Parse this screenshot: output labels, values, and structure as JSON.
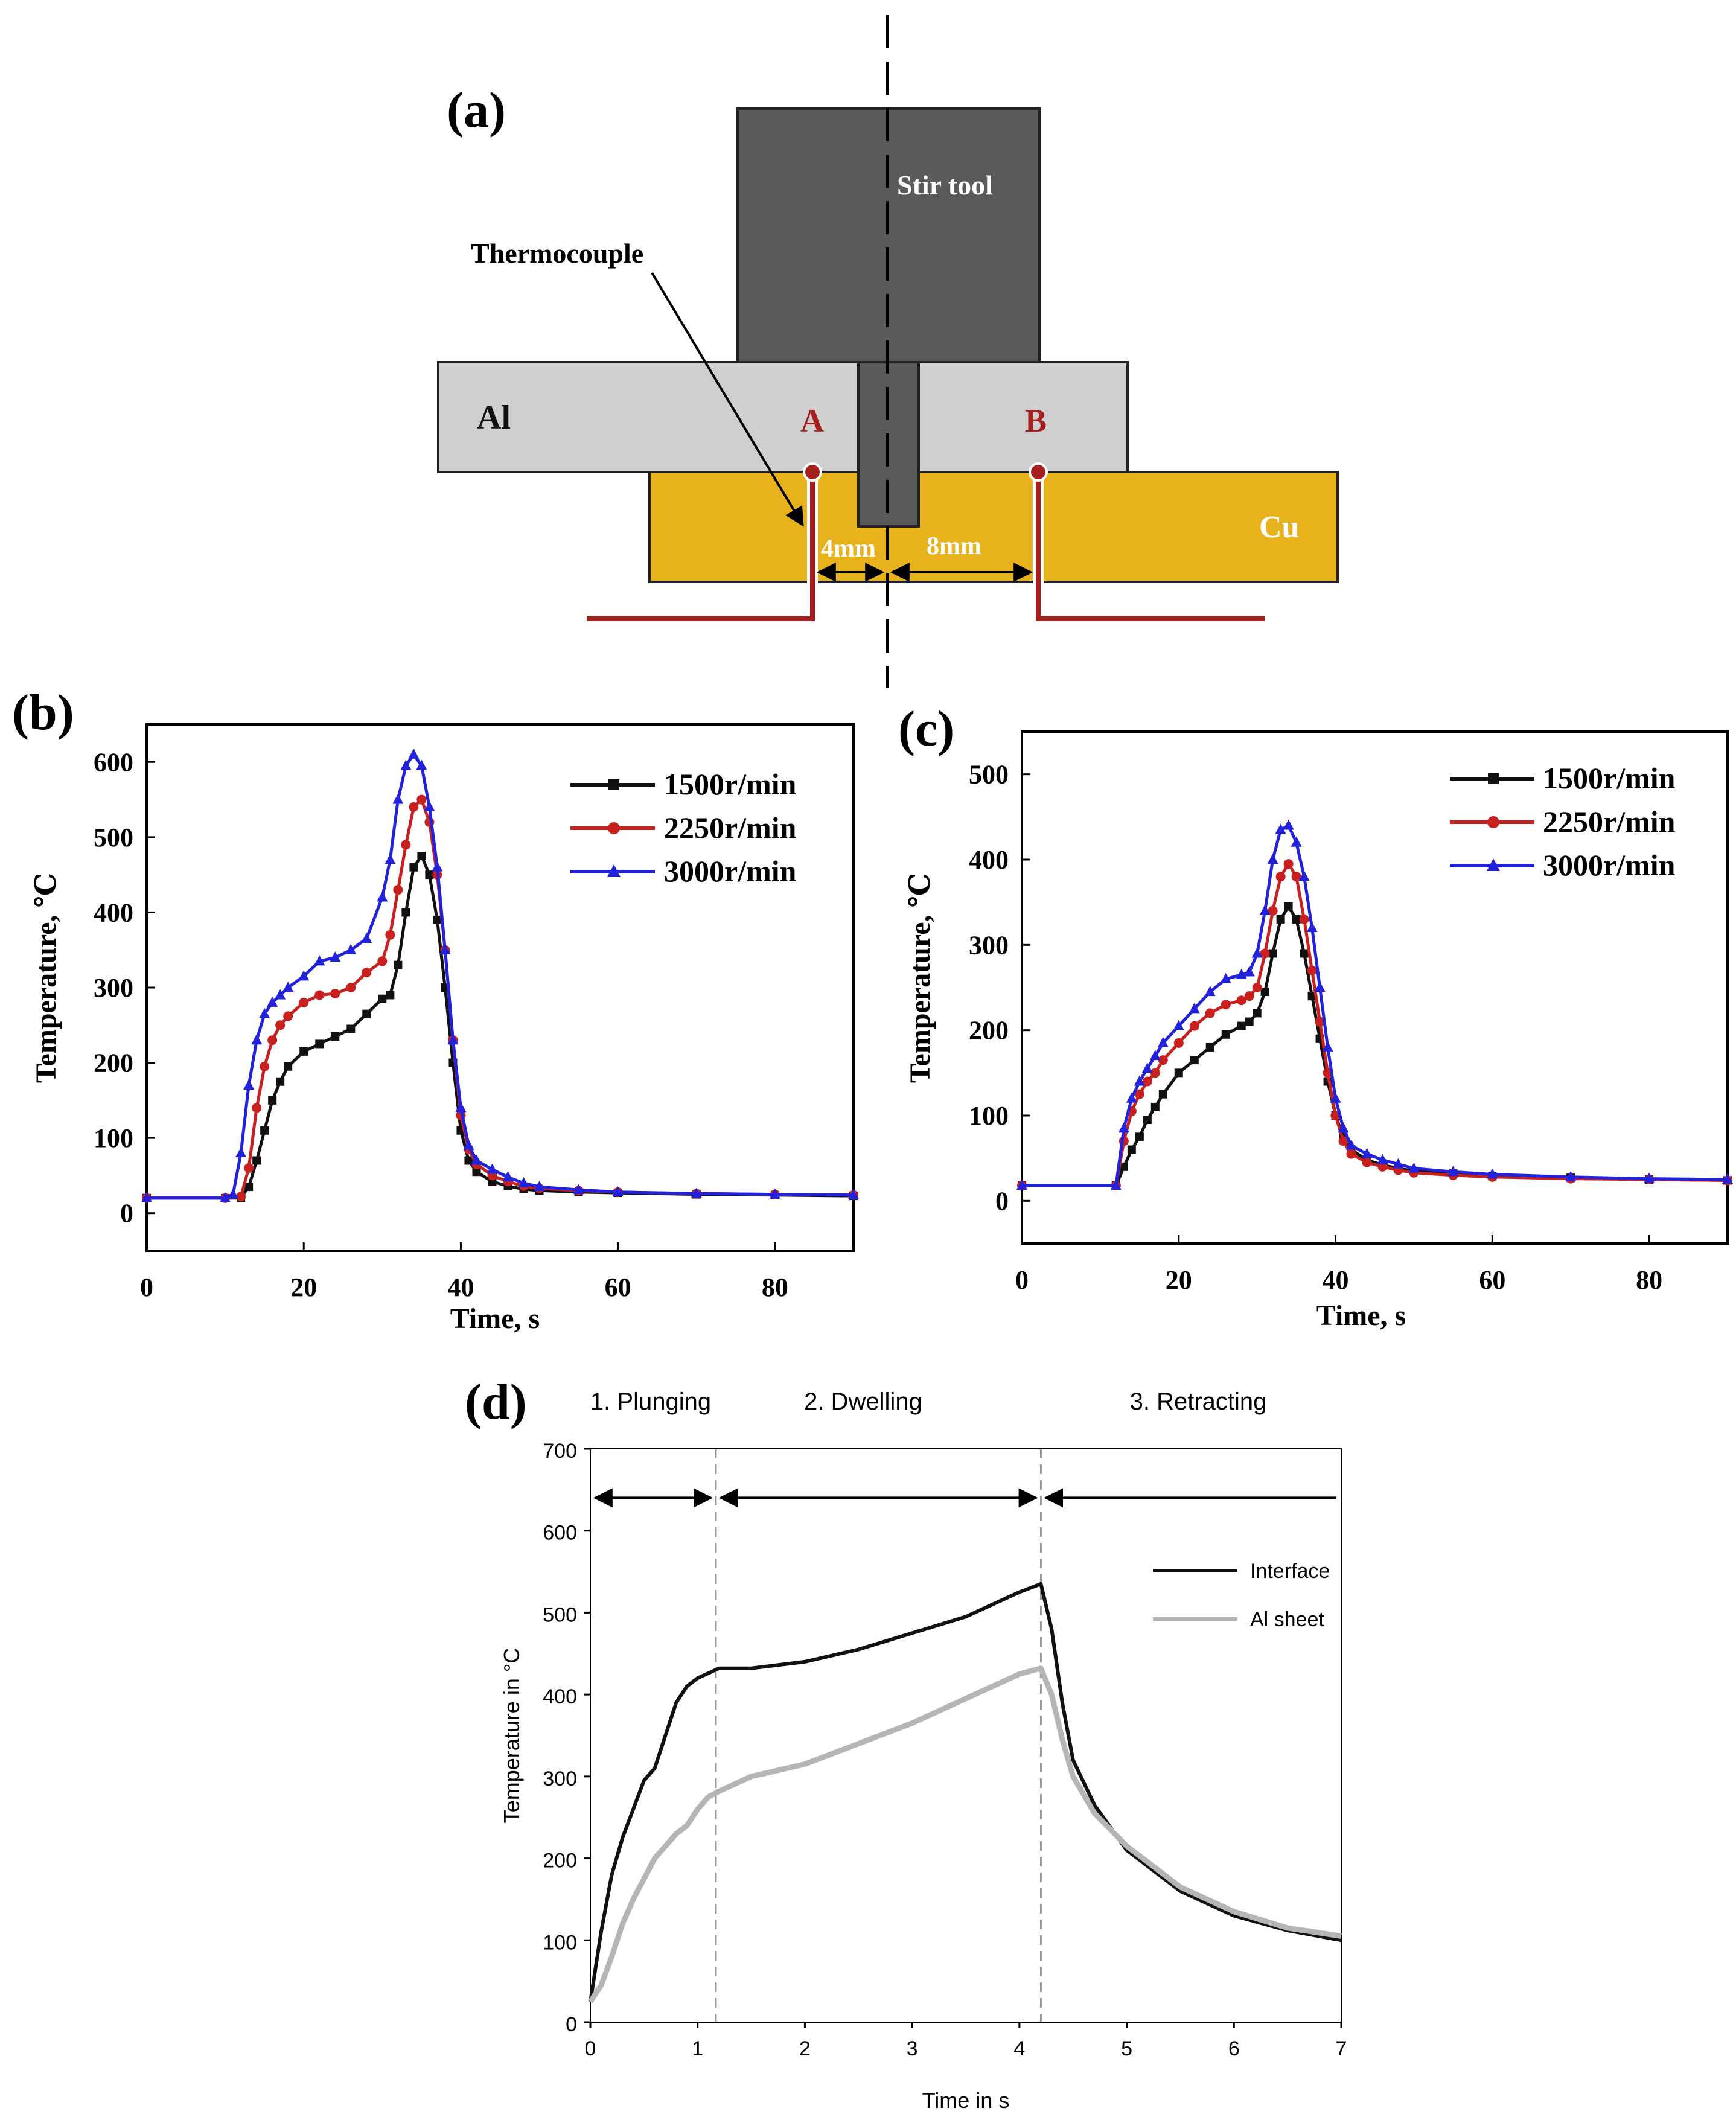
{
  "colors": {
    "tool": "#5a5a5a",
    "al_sheet": "#cfcfcf",
    "cu_sheet": "#e8b21c",
    "thermocouple": "#a51f1f",
    "series_1500": "#111111",
    "series_2250": "#c8201e",
    "series_3000": "#2222dd",
    "interface": "#111111",
    "al_sheet_line": "#b5b5b5"
  },
  "panel_a": {
    "label": "(a)",
    "stir_tool": "Stir tool",
    "thermocouple": "Thermocouple",
    "al": "Al",
    "cu": "Cu",
    "point_a": "A",
    "point_b": "B",
    "dim_4": "4mm",
    "dim_8": "8mm"
  },
  "chart_data": [
    {
      "id": "b",
      "type": "line",
      "panel_label": "(b)",
      "xlabel": "Time,  s",
      "ylabel": "Temperature,  ℃",
      "xlim": [
        0,
        90
      ],
      "ylim": [
        -50,
        650
      ],
      "xticks": [
        "0",
        "20",
        "40",
        "60",
        "80"
      ],
      "yticks": [
        "0",
        "100",
        "200",
        "300",
        "400",
        "500",
        "600"
      ],
      "legend": "top-right",
      "series": [
        {
          "name": "1500r/min",
          "marker": "square",
          "x": [
            0,
            10,
            12,
            13,
            14,
            15,
            16,
            17,
            18,
            20,
            22,
            24,
            26,
            28,
            30,
            31,
            32,
            33,
            34,
            35,
            36,
            37,
            38,
            39,
            40,
            41,
            42,
            44,
            46,
            48,
            50,
            55,
            60,
            70,
            80,
            90
          ],
          "y": [
            20,
            20,
            20,
            35,
            70,
            110,
            150,
            175,
            195,
            215,
            225,
            235,
            245,
            265,
            285,
            290,
            330,
            400,
            460,
            475,
            450,
            390,
            300,
            200,
            110,
            70,
            55,
            42,
            36,
            32,
            30,
            28,
            27,
            25,
            24,
            23
          ]
        },
        {
          "name": "2250r/min",
          "marker": "circle",
          "x": [
            0,
            10,
            12,
            13,
            14,
            15,
            16,
            17,
            18,
            20,
            22,
            24,
            26,
            28,
            30,
            31,
            32,
            33,
            34,
            35,
            36,
            37,
            38,
            39,
            40,
            41,
            42,
            44,
            46,
            48,
            50,
            55,
            60,
            70,
            80,
            90
          ],
          "y": [
            20,
            20,
            22,
            60,
            140,
            195,
            230,
            250,
            262,
            280,
            290,
            292,
            300,
            320,
            335,
            370,
            430,
            490,
            540,
            550,
            520,
            450,
            350,
            230,
            130,
            85,
            65,
            50,
            42,
            36,
            33,
            30,
            28,
            26,
            25,
            24
          ]
        },
        {
          "name": "3000r/min",
          "marker": "triangle",
          "x": [
            0,
            10,
            11,
            12,
            13,
            14,
            15,
            16,
            17,
            18,
            20,
            22,
            24,
            26,
            28,
            30,
            31,
            32,
            33,
            34,
            35,
            36,
            37,
            38,
            39,
            40,
            41,
            42,
            44,
            46,
            48,
            50,
            55,
            60,
            70,
            80,
            90
          ],
          "y": [
            20,
            20,
            25,
            80,
            170,
            230,
            265,
            280,
            290,
            300,
            315,
            335,
            340,
            350,
            365,
            420,
            470,
            550,
            595,
            610,
            595,
            540,
            460,
            350,
            230,
            140,
            90,
            70,
            58,
            48,
            40,
            35,
            31,
            28,
            26,
            25,
            24
          ]
        }
      ]
    },
    {
      "id": "c",
      "type": "line",
      "panel_label": "(c)",
      "xlabel": "Time,  s",
      "ylabel": "Temperature,  ℃",
      "xlim": [
        0,
        90
      ],
      "ylim": [
        -50,
        550
      ],
      "xticks": [
        "0",
        "20",
        "40",
        "60",
        "80"
      ],
      "yticks": [
        "0",
        "100",
        "200",
        "300",
        "400",
        "500"
      ],
      "legend": "top-right",
      "series": [
        {
          "name": "1500r/min",
          "marker": "square",
          "x": [
            0,
            12,
            13,
            14,
            15,
            16,
            17,
            18,
            20,
            22,
            24,
            26,
            28,
            29,
            30,
            31,
            32,
            33,
            34,
            35,
            36,
            37,
            38,
            39,
            40,
            41,
            42,
            44,
            46,
            48,
            50,
            55,
            60,
            70,
            80,
            90
          ],
          "y": [
            18,
            18,
            40,
            60,
            75,
            95,
            110,
            125,
            150,
            165,
            180,
            195,
            205,
            210,
            220,
            245,
            290,
            330,
            345,
            330,
            290,
            240,
            190,
            140,
            100,
            75,
            60,
            48,
            42,
            38,
            35,
            32,
            29,
            27,
            25,
            24
          ]
        },
        {
          "name": "2250r/min",
          "marker": "circle",
          "x": [
            0,
            12,
            13,
            14,
            15,
            16,
            17,
            18,
            20,
            22,
            24,
            26,
            28,
            29,
            30,
            31,
            32,
            33,
            34,
            35,
            36,
            37,
            38,
            39,
            40,
            41,
            42,
            44,
            46,
            48,
            50,
            55,
            60,
            70,
            80,
            90
          ],
          "y": [
            18,
            18,
            70,
            105,
            125,
            140,
            150,
            165,
            185,
            205,
            220,
            230,
            235,
            240,
            250,
            290,
            340,
            380,
            395,
            380,
            330,
            270,
            210,
            150,
            100,
            70,
            55,
            45,
            40,
            36,
            33,
            30,
            28,
            26,
            25,
            24
          ]
        },
        {
          "name": "3000r/min",
          "marker": "triangle",
          "x": [
            0,
            12,
            13,
            14,
            15,
            16,
            17,
            18,
            20,
            22,
            24,
            26,
            28,
            29,
            30,
            31,
            32,
            33,
            34,
            35,
            36,
            37,
            38,
            39,
            40,
            41,
            42,
            44,
            46,
            48,
            50,
            55,
            60,
            70,
            80,
            90
          ],
          "y": [
            18,
            18,
            85,
            120,
            140,
            155,
            170,
            185,
            205,
            225,
            245,
            260,
            265,
            268,
            290,
            340,
            400,
            435,
            440,
            420,
            380,
            320,
            250,
            180,
            120,
            85,
            65,
            55,
            48,
            43,
            38,
            34,
            31,
            28,
            26,
            25
          ]
        }
      ]
    },
    {
      "id": "d",
      "type": "line",
      "panel_label": "(d)",
      "xlabel": "Time in s",
      "ylabel": "Temperature in °C",
      "xlim": [
        0,
        7
      ],
      "ylim": [
        0,
        700
      ],
      "xticks": [
        "0",
        "1",
        "2",
        "3",
        "4",
        "5",
        "6",
        "7"
      ],
      "yticks": [
        "0",
        "100",
        "200",
        "300",
        "400",
        "500",
        "600",
        "700"
      ],
      "legend": "right",
      "phase_boundaries": [
        1.17,
        4.2
      ],
      "phases": [
        "1. Plunging",
        "2. Dwelling",
        "3. Retracting"
      ],
      "series": [
        {
          "name": "Interface",
          "x": [
            0,
            0.1,
            0.2,
            0.3,
            0.4,
            0.5,
            0.6,
            0.7,
            0.8,
            0.9,
            1.0,
            1.2,
            1.5,
            2.0,
            2.5,
            3.0,
            3.5,
            4.0,
            4.2,
            4.3,
            4.4,
            4.5,
            4.7,
            5.0,
            5.5,
            6.0,
            6.5,
            7.0
          ],
          "y": [
            25,
            110,
            180,
            225,
            260,
            295,
            310,
            350,
            390,
            410,
            420,
            432,
            432,
            440,
            455,
            475,
            495,
            525,
            535,
            480,
            390,
            320,
            265,
            210,
            160,
            130,
            112,
            100
          ]
        },
        {
          "name": "Al sheet",
          "x": [
            0,
            0.1,
            0.2,
            0.3,
            0.4,
            0.5,
            0.6,
            0.7,
            0.8,
            0.9,
            1.0,
            1.1,
            1.2,
            1.5,
            2.0,
            2.5,
            3.0,
            3.5,
            4.0,
            4.2,
            4.3,
            4.4,
            4.5,
            4.7,
            5.0,
            5.5,
            6.0,
            6.5,
            7.0
          ],
          "y": [
            25,
            45,
            80,
            120,
            150,
            175,
            200,
            215,
            230,
            240,
            260,
            275,
            282,
            300,
            315,
            340,
            365,
            395,
            425,
            432,
            400,
            345,
            300,
            255,
            215,
            165,
            135,
            115,
            105
          ]
        }
      ]
    }
  ]
}
